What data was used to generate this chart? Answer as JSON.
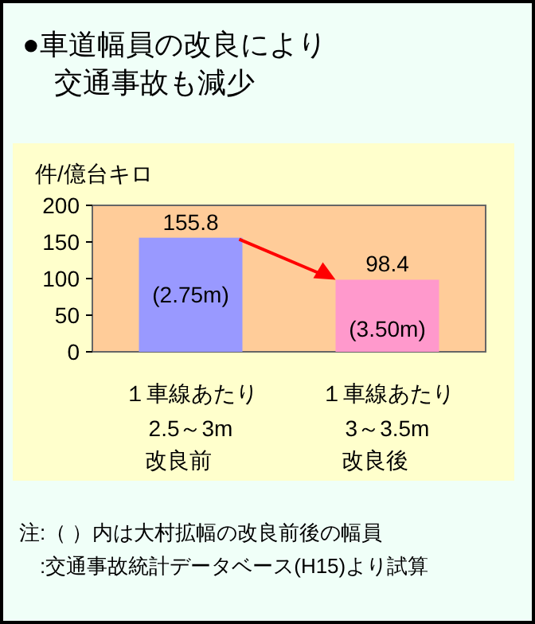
{
  "chart_data": {
    "type": "bar",
    "title": "●車道幅員の改良により交通事故も減少",
    "ylabel": "件/億台キロ",
    "categories": [
      "１車線あたり\n2.5～3m\n改良前",
      "１車線あたり\n3～3.5m\n改良後"
    ],
    "values": [
      155.8,
      98.4
    ],
    "colors": [
      "#9999ff",
      "#ff99cc"
    ],
    "ylim": [
      0,
      200
    ],
    "yticks": [
      0,
      50,
      100,
      150,
      200
    ],
    "grid": false,
    "data_labels": true,
    "annotations": [
      "(2.75m)",
      "(3.50m)",
      "注:（ ）内は大村拡幅の改良前後の幅員",
      "　:交通事故統計データベース(H15)より試算"
    ]
  }
}
